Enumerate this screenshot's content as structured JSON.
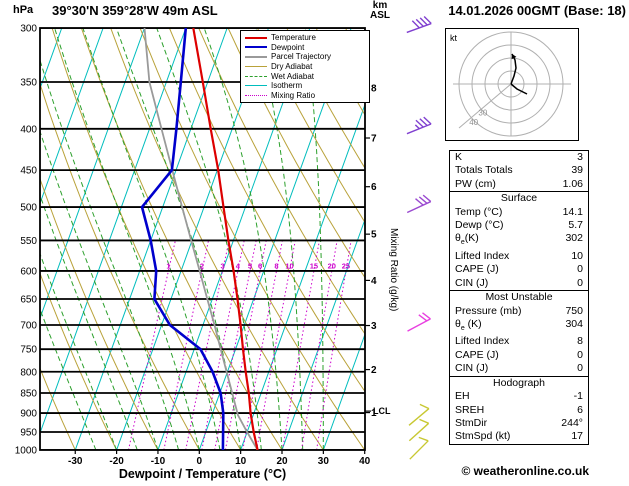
{
  "header": {
    "pressure_unit": "hPa",
    "station": "39°30'N 359°28'W 49m ASL",
    "altitude_unit_km": "km",
    "altitude_unit_asl": "ASL",
    "datetime": "14.01.2026 00GMT (Base: 18)"
  },
  "axes": {
    "pressure_ticks": [
      300,
      350,
      400,
      450,
      500,
      550,
      600,
      650,
      700,
      750,
      800,
      850,
      900,
      950,
      1000
    ],
    "temp_ticks": [
      -30,
      -20,
      -10,
      0,
      10,
      20,
      30,
      40
    ],
    "km_ticks": [
      1,
      2,
      3,
      4,
      5,
      6,
      7,
      8
    ],
    "x_label": "Dewpoint / Temperature (°C)",
    "mixing_axis_label": "Mixing Ratio (g/kg)",
    "lcl_label": "LCL"
  },
  "legend": {
    "items": [
      {
        "label": "Temperature",
        "color": "#dd0000",
        "style": "solid",
        "width": 2
      },
      {
        "label": "Dewpoint",
        "color": "#0000cc",
        "style": "solid",
        "width": 2.5
      },
      {
        "label": "Parcel Trajectory",
        "color": "#9a9a9a",
        "style": "solid",
        "width": 2
      },
      {
        "label": "Dry Adiabat",
        "color": "#b9a23a",
        "style": "solid",
        "width": 1
      },
      {
        "label": "Wet Adiabat",
        "color": "#2ca02c",
        "style": "dashed",
        "width": 1
      },
      {
        "label": "Isotherm",
        "color": "#00bdbd",
        "style": "solid",
        "width": 1
      },
      {
        "label": "Mixing Ratio",
        "color": "#cc00cc",
        "style": "dotted",
        "width": 1
      }
    ]
  },
  "mixing_ratio_labels": [
    1,
    2,
    3,
    4,
    5,
    6,
    8,
    10,
    15,
    20,
    25
  ],
  "hodograph": {
    "unit_label": "kt",
    "ring_spacing_kt": 10,
    "rings_kt": [
      10,
      20,
      30,
      40
    ],
    "ring_labels": [
      "30",
      "40"
    ],
    "trace_upper": [
      [
        0,
        0
      ],
      [
        3,
        -8
      ],
      [
        5,
        -16
      ],
      [
        4,
        -24
      ],
      [
        1,
        -30
      ]
    ],
    "trace_lower": [
      [
        0,
        0
      ],
      [
        6,
        5
      ],
      [
        12,
        8
      ],
      [
        16,
        10
      ]
    ]
  },
  "indices": {
    "sections": [
      {
        "rows": [
          [
            "K",
            "3"
          ],
          [
            "Totals Totals",
            "39"
          ],
          [
            "PW (cm)",
            "1.06"
          ]
        ]
      },
      {
        "header": "Surface",
        "rows": [
          [
            "Temp (°C)",
            "14.1"
          ],
          [
            "Dewp (°C)",
            "5.7"
          ],
          [
            "θe(K)",
            "302"
          ],
          [
            "Lifted Index",
            "10"
          ],
          [
            "CAPE (J)",
            "0"
          ],
          [
            "CIN (J)",
            "0"
          ]
        ]
      },
      {
        "header": "Most Unstable",
        "rows": [
          [
            "Pressure (mb)",
            "750"
          ],
          [
            "θe (K)",
            "304"
          ],
          [
            "Lifted Index",
            "8"
          ],
          [
            "CAPE (J)",
            "0"
          ],
          [
            "CIN (J)",
            "0"
          ]
        ]
      },
      {
        "header": "Hodograph",
        "rows": [
          [
            "EH",
            "-1"
          ],
          [
            "SREH",
            "6"
          ],
          [
            "StmDir",
            "244°"
          ],
          [
            "StmSpd (kt)",
            "17"
          ]
        ]
      }
    ]
  },
  "copyright": "© weatheronline.co.uk",
  "chart_data": {
    "type": "skewt-logp",
    "p_top_hpa": 300,
    "p_bottom_hpa": 1000,
    "surface_temp_axis_range_c": [
      -40,
      40
    ],
    "pressure_hpa": [
      1000,
      950,
      900,
      850,
      800,
      750,
      700,
      650,
      600,
      550,
      500,
      450,
      400,
      350,
      300
    ],
    "temperature_c": [
      14.1,
      11.6,
      9.2,
      7.0,
      4.4,
      1.8,
      -0.9,
      -3.9,
      -7.3,
      -11.2,
      -15.3,
      -19.8,
      -25.2,
      -31.2,
      -38.2
    ],
    "dewpoint_c": [
      5.7,
      4.2,
      2.6,
      0.2,
      -3.6,
      -8.5,
      -18.0,
      -24.0,
      -26.0,
      -30.0,
      -35.0,
      -31.0,
      -33.5,
      -36.5,
      -40.0
    ],
    "parcel_pressure_hpa": [
      1000,
      950,
      905,
      850,
      800,
      750,
      700,
      650,
      600,
      550,
      500,
      450,
      400,
      350,
      300
    ],
    "parcel_temperature_c": [
      14.1,
      10.0,
      6.3,
      3.0,
      -0.2,
      -3.6,
      -7.2,
      -11.2,
      -15.5,
      -20.2,
      -25.3,
      -30.9,
      -37.1,
      -44.1,
      -50.0
    ],
    "lcl_pressure_hpa": 895,
    "winds": [
      {
        "p": 300,
        "dir_deg": 250,
        "spd_kt": 40,
        "color": "#8040d0"
      },
      {
        "p": 400,
        "dir_deg": 248,
        "spd_kt": 35,
        "color": "#8040d0"
      },
      {
        "p": 500,
        "dir_deg": 245,
        "spd_kt": 30,
        "color": "#9a4ad0"
      },
      {
        "p": 700,
        "dir_deg": 242,
        "spd_kt": 20,
        "color": "#e840e0"
      },
      {
        "p": 910,
        "dir_deg": 230,
        "spd_kt": 12,
        "color": "#c8c832"
      },
      {
        "p": 950,
        "dir_deg": 228,
        "spd_kt": 10,
        "color": "#c8c832"
      },
      {
        "p": 1000,
        "dir_deg": 225,
        "spd_kt": 8,
        "color": "#c8c832"
      }
    ],
    "isotherm_range_c": [
      -80,
      40
    ],
    "isotherm_step_c": 10,
    "dry_adiabat_theta_range_c": [
      -30,
      110
    ],
    "dry_adiabat_step_c": 10,
    "wet_adiabat_start_temps_c": [
      -25,
      -20,
      -15,
      -10,
      -5,
      0,
      5,
      10,
      15,
      20,
      25,
      30
    ],
    "mixing_ratio_g_kg": [
      1,
      2,
      3,
      4,
      5,
      6,
      8,
      10,
      15,
      20,
      25
    ]
  }
}
